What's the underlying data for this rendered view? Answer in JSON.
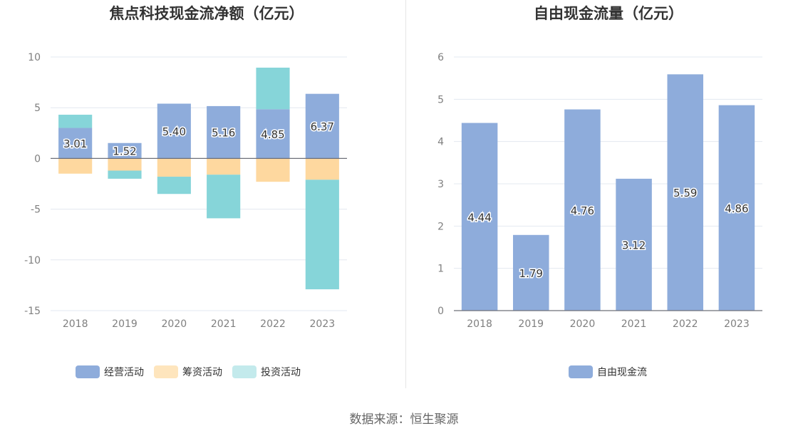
{
  "colors": {
    "operating": "#8eacdb",
    "financing": "#fed89f",
    "investing": "#86d5d9",
    "free_cash_flow": "#8eacdb",
    "grid": "#e3e8f0",
    "axis": "#6e7079"
  },
  "chart_data": [
    {
      "type": "bar",
      "stacked": true,
      "title": "焦点科技现金流净额（亿元）",
      "categories": [
        "2018",
        "2019",
        "2020",
        "2021",
        "2022",
        "2023"
      ],
      "ylim": [
        -15,
        10
      ],
      "yticks": [
        10,
        5,
        0,
        -5,
        -10,
        -15
      ],
      "ytick_labels": [
        "10",
        "5",
        "0",
        "-5",
        "-10",
        "-15"
      ],
      "grid": true,
      "legend_position": "bottom",
      "series": [
        {
          "name": "经营活动",
          "color_key": "operating",
          "values": [
            3.01,
            1.52,
            5.4,
            5.16,
            4.85,
            6.37
          ],
          "labels": [
            "3.01",
            "1.52",
            "5.40",
            "5.16",
            "4.85",
            "6.37"
          ]
        },
        {
          "name": "筹资活动",
          "color_key": "financing",
          "values": [
            -1.5,
            -1.2,
            -1.8,
            -1.6,
            -2.3,
            -2.1
          ]
        },
        {
          "name": "投资活动",
          "color_key": "investing",
          "values": [
            1.3,
            -0.8,
            -1.7,
            -4.3,
            4.1,
            -10.8
          ]
        }
      ]
    },
    {
      "type": "bar",
      "title": "自由现金流量（亿元）",
      "categories": [
        "2018",
        "2019",
        "2020",
        "2021",
        "2022",
        "2023"
      ],
      "ylim": [
        0,
        6
      ],
      "yticks": [
        6,
        5,
        4,
        3,
        2,
        1,
        0
      ],
      "ytick_labels": [
        "6",
        "5",
        "4",
        "3",
        "2",
        "1",
        "0"
      ],
      "grid": true,
      "legend_position": "bottom",
      "series": [
        {
          "name": "自由现金流",
          "color_key": "free_cash_flow",
          "values": [
            4.44,
            1.79,
            4.76,
            3.12,
            5.59,
            4.86
          ],
          "labels": [
            "4.44",
            "1.79",
            "4.76",
            "3.12",
            "5.59",
            "4.86"
          ]
        }
      ]
    }
  ],
  "footer": {
    "source": "数据来源：恒生聚源"
  }
}
